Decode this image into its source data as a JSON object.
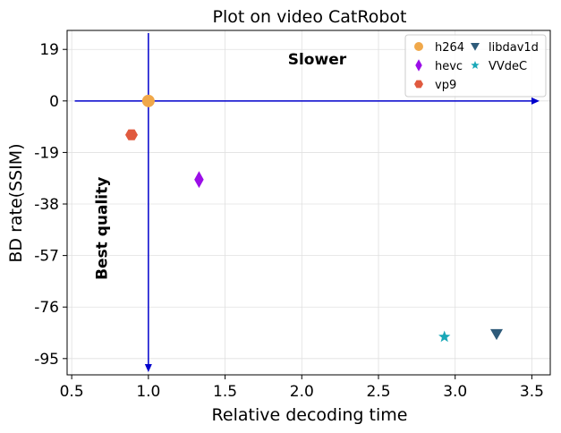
{
  "chart_data": {
    "type": "scatter",
    "title": "Plot on video CatRobot",
    "xlabel": "Relative decoding time",
    "ylabel": "BD rate(SSIM)",
    "xlim": [
      0.47,
      3.62
    ],
    "ylim": [
      -101,
      26
    ],
    "xticks": [
      0.5,
      1.0,
      1.5,
      2.0,
      2.5,
      3.0,
      3.5
    ],
    "xtick_labels": [
      "0.5",
      "1.0",
      "1.5",
      "2.0",
      "2.5",
      "3.0",
      "3.5"
    ],
    "yticks": [
      19,
      0,
      -19,
      -38,
      -57,
      -76,
      -95
    ],
    "ytick_labels": [
      "19",
      "0",
      "-19",
      "-38",
      "-57",
      "-76",
      "-95"
    ],
    "grid": true,
    "legend_position": "top-right",
    "series": [
      {
        "name": "h264",
        "marker": "circle",
        "color": "#f0a84a",
        "x": 1.0,
        "y": 0.0
      },
      {
        "name": "hevc",
        "marker": "thin-diamond",
        "color": "#9b0ee8",
        "x": 1.33,
        "y": -29.0
      },
      {
        "name": "vp9",
        "marker": "hexagon",
        "color": "#e05a3f",
        "x": 0.89,
        "y": -12.5
      },
      {
        "name": "libdav1d",
        "marker": "triangle-down",
        "color": "#2e5b7a",
        "x": 3.27,
        "y": -86.0
      },
      {
        "name": "VVdeC",
        "marker": "star",
        "color": "#1aa8b8",
        "x": 2.93,
        "y": -87.0
      }
    ],
    "annotations": [
      {
        "text": "Slower",
        "x": 2.1,
        "y": 13.5
      },
      {
        "text": "Best quality",
        "x": 0.73,
        "y": -47
      }
    ],
    "arrows": {
      "horizontal": {
        "y": 0,
        "x_start": 0.52,
        "x_end": 3.55,
        "color": "#0000cc"
      },
      "vertical": {
        "x": 1.0,
        "y_start": 25,
        "y_end": -100,
        "color": "#0000cc"
      }
    }
  }
}
